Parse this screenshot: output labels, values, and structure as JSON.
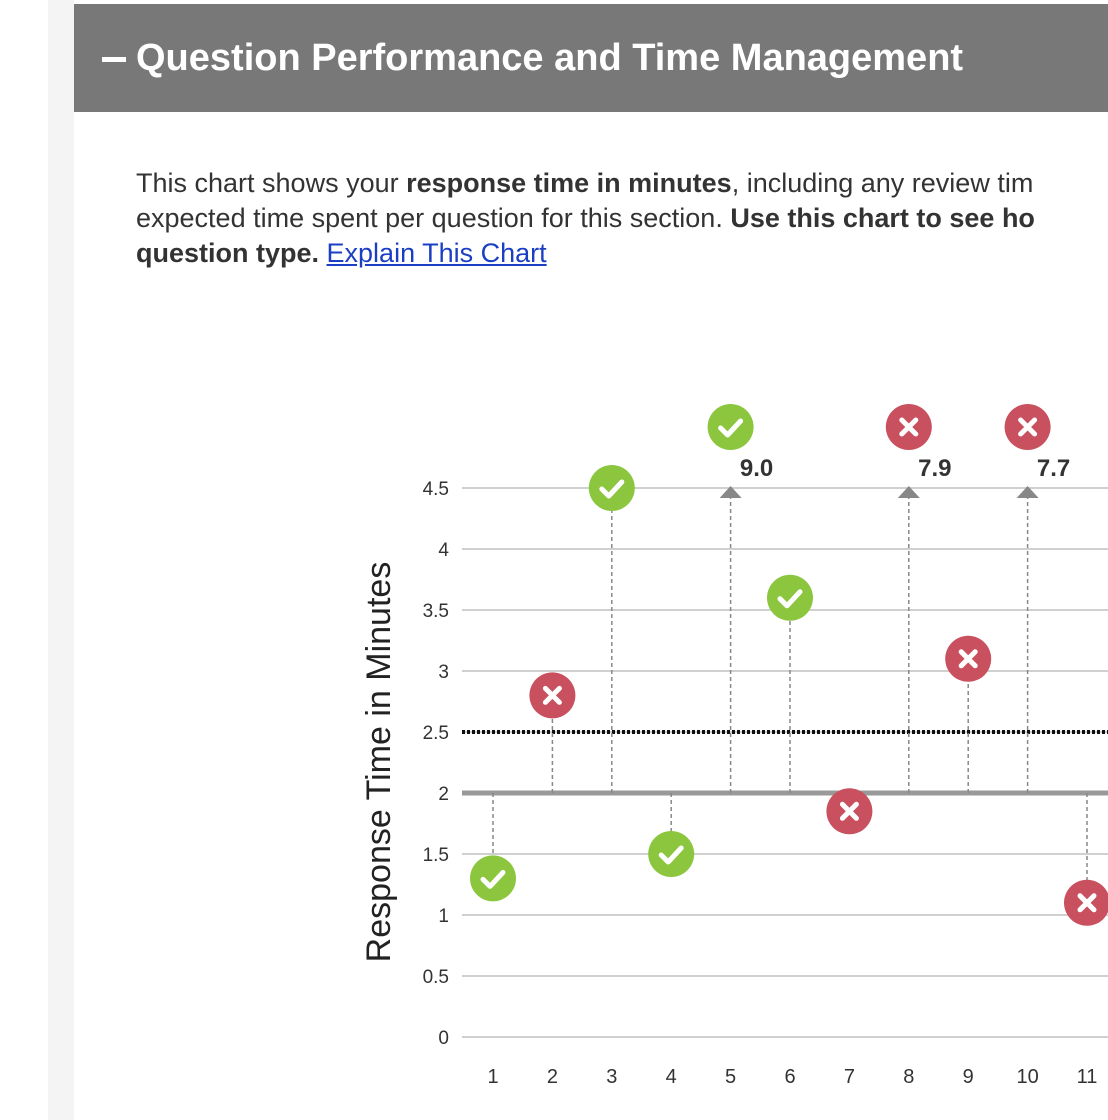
{
  "header": {
    "title": "Question Performance and Time Management"
  },
  "intro": {
    "line1_start": "This chart shows your ",
    "line1_bold": "response time in minutes",
    "line1_end": ", including any review tim",
    "line2_start": "expected time spent per question for this section. ",
    "line2_bold": "Use this chart to see ho",
    "line3_bold": "question type.",
    "link": "Explain This Chart"
  },
  "chart_data": {
    "type": "lollipop",
    "y_label": "Response Time in Minutes",
    "categories": [
      "1",
      "2",
      "3",
      "4",
      "5",
      "6",
      "7",
      "8",
      "9",
      "10",
      "11"
    ],
    "values": [
      1.3,
      2.8,
      4.5,
      1.5,
      9.0,
      3.6,
      1.85,
      7.9,
      3.1,
      7.7,
      1.1
    ],
    "value_labels": [
      null,
      null,
      null,
      null,
      "9.0",
      null,
      null,
      "7.9",
      null,
      "7.7",
      null
    ],
    "correct": [
      true,
      false,
      true,
      true,
      true,
      true,
      false,
      false,
      false,
      false,
      false
    ],
    "correct_color": "#8cc63f",
    "incorrect_color": "#c8505f",
    "ylim": [
      0,
      4.5
    ],
    "yticks": [
      0,
      0.5,
      1,
      1.5,
      2,
      2.5,
      3,
      3.5,
      4,
      4.5
    ],
    "baseline": 2,
    "expected_time": 2.5,
    "grid": true
  }
}
